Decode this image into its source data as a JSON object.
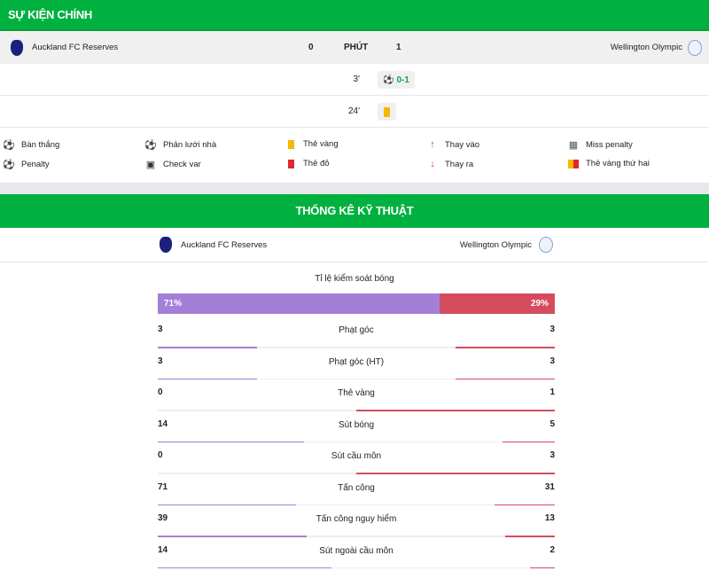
{
  "events_section": {
    "title": "SỰ KIỆN CHÍNH",
    "home_team": "Auckland FC Reserves",
    "away_team": "Wellington Olympic",
    "home_score": "0",
    "away_score": "1",
    "minute_label": "PHÚT",
    "events": [
      {
        "minute": "3'",
        "side": "away",
        "type": "goal",
        "text": "0-1"
      },
      {
        "minute": "24'",
        "side": "away",
        "type": "yellow-card",
        "text": ""
      }
    ]
  },
  "legend": [
    {
      "icon": "soccer-ball-icon",
      "label": "Bàn thắng"
    },
    {
      "icon": "own-goal-icon",
      "label": "Phản lưới nhà"
    },
    {
      "icon": "yellow-card-icon",
      "label": "Thẻ vàng"
    },
    {
      "icon": "sub-in-arrow-icon",
      "label": "Thay vào"
    },
    {
      "icon": "miss-penalty-icon",
      "label": "Miss penalty"
    },
    {
      "icon": "penalty-icon",
      "label": "Penalty"
    },
    {
      "icon": "var-icon",
      "label": "Check var"
    },
    {
      "icon": "red-card-icon",
      "label": "Thẻ đỏ"
    },
    {
      "icon": "sub-out-arrow-icon",
      "label": "Thay ra"
    },
    {
      "icon": "second-yellow-icon",
      "label": "Thẻ vàng thứ hai"
    }
  ],
  "stats_section": {
    "title": "THỐNG KÊ KỸ THUẬT",
    "home_team": "Auckland FC Reserves",
    "away_team": "Wellington Olympic",
    "possession": {
      "label": "Tỉ lệ kiểm soát bóng",
      "home": "71%",
      "away": "29%",
      "home_value": 71,
      "away_value": 29
    },
    "stats": [
      {
        "name": "Phạt góc",
        "home": 3,
        "away": 3
      },
      {
        "name": "Phạt góc (HT)",
        "home": 3,
        "away": 3
      },
      {
        "name": "Thẻ vàng",
        "home": 0,
        "away": 1
      },
      {
        "name": "Sút bóng",
        "home": 14,
        "away": 5
      },
      {
        "name": "Sút cầu môn",
        "home": 0,
        "away": 3
      },
      {
        "name": "Tấn công",
        "home": 71,
        "away": 31
      },
      {
        "name": "Tấn công nguy hiểm",
        "home": 39,
        "away": 13
      },
      {
        "name": "Sút ngoài cầu môn",
        "home": 14,
        "away": 2
      }
    ]
  },
  "colors": {
    "brand_green": "#00b140",
    "home": "#a47fd8",
    "away": "#d44c5e",
    "yellow": "#f5b800",
    "red": "#e0282e"
  }
}
